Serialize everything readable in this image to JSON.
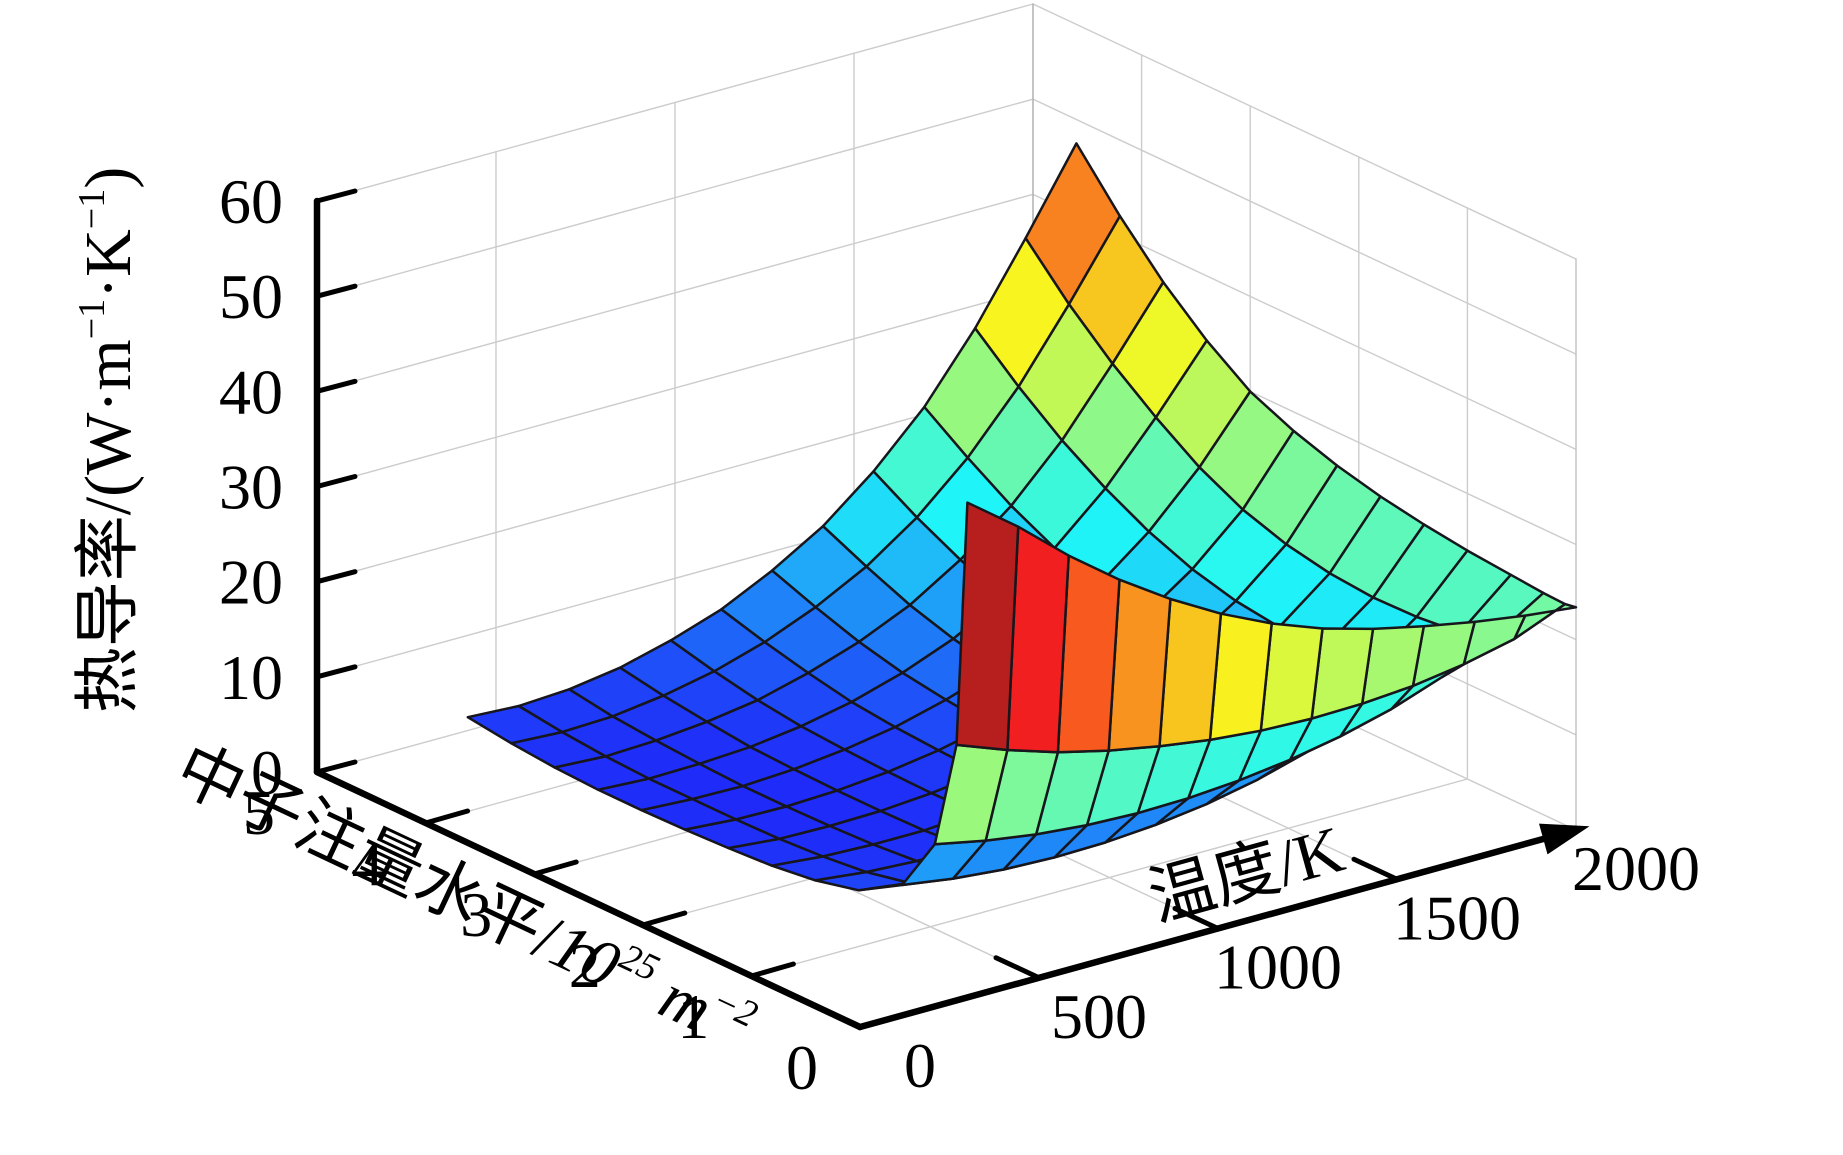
{
  "chart_data": {
    "type": "surface",
    "title": "",
    "xlabel": "温度/K",
    "ylabel": "中子注量水平/10²⁵ m⁻²",
    "zlabel": "热导率/(W·m⁻¹·K⁻¹)",
    "xlabel_parts": [
      {
        "t": "温度/K"
      }
    ],
    "ylabel_parts": [
      {
        "t": "中子注量水平/"
      },
      {
        "t": "10",
        "it": true
      },
      {
        "t": "25",
        "sup": true,
        "it": true
      },
      {
        "t": " m",
        "it": true
      },
      {
        "t": "−2",
        "sup": true,
        "it": true
      }
    ],
    "zlabel_parts": [
      {
        "t": "热导率/(W·m"
      },
      {
        "t": "−1",
        "sup": true
      },
      {
        "t": "·K"
      },
      {
        "t": "−1",
        "sup": true
      },
      {
        "t": ")"
      }
    ],
    "x_ticks": [
      0,
      500,
      1000,
      1500,
      2000
    ],
    "y_ticks": [
      0,
      1,
      2,
      3,
      4,
      5
    ],
    "z_ticks": [
      0,
      10,
      20,
      30,
      40,
      50,
      60
    ],
    "xlim": [
      0,
      2000
    ],
    "ylim": [
      0,
      5
    ],
    "zlim": [
      0,
      60
    ],
    "grid": true,
    "legend": "none",
    "colormap": "jet",
    "caxis": [
      -5,
      55
    ],
    "axis_color": "#000000",
    "grid_color": "#cccccc",
    "mesh_edge_color": "#16161c",
    "temperature_K": [
      300,
      442,
      583,
      725,
      867,
      1008,
      1150,
      1292,
      1433,
      1575,
      1717,
      1858,
      2000
    ],
    "fluence_1e25_m2": [
      0,
      0.1,
      0.3,
      0.6,
      1.0,
      1.4,
      1.8,
      2.2,
      2.6,
      3.0,
      3.4,
      3.8,
      4.2,
      4.6
    ],
    "conductivity_W_mK": [
      [
        52.0,
        48.0,
        43.5,
        39.5,
        36.0,
        33.0,
        30.5,
        28.5,
        27.0,
        25.8,
        24.8,
        24.0,
        23.4
      ],
      [
        26.0,
        24.0,
        22.3,
        21.0,
        20.0,
        19.2,
        18.7,
        18.5,
        18.6,
        19.0,
        19.8,
        21.0,
        23.2
      ],
      [
        14.5,
        13.4,
        12.6,
        12.1,
        11.9,
        12.0,
        12.4,
        13.1,
        14.1,
        15.5,
        17.4,
        20.0,
        23.3
      ],
      [
        8.6,
        7.8,
        7.3,
        7.1,
        7.2,
        7.6,
        8.3,
        9.4,
        10.9,
        12.9,
        15.5,
        19.0,
        23.6
      ],
      [
        5.9,
        5.2,
        4.9,
        4.8,
        5.0,
        5.5,
        6.4,
        7.7,
        9.4,
        11.7,
        14.7,
        18.5,
        24.0
      ],
      [
        4.8,
        4.2,
        3.9,
        3.9,
        4.2,
        4.8,
        5.8,
        7.1,
        8.9,
        11.3,
        14.4,
        18.4,
        24.6
      ],
      [
        4.2,
        3.7,
        3.5,
        3.5,
        3.9,
        4.5,
        5.5,
        6.9,
        8.8,
        11.3,
        14.6,
        18.8,
        25.4
      ],
      [
        3.9,
        3.4,
        3.3,
        3.4,
        3.8,
        4.5,
        5.6,
        7.1,
        9.2,
        11.8,
        15.2,
        19.7,
        26.5
      ],
      [
        3.7,
        3.3,
        3.2,
        3.4,
        3.9,
        4.7,
        5.9,
        7.6,
        9.8,
        12.7,
        16.4,
        21.2,
        28.0
      ],
      [
        3.6,
        3.3,
        3.2,
        3.5,
        4.1,
        5.0,
        6.4,
        8.2,
        10.7,
        14.0,
        18.2,
        23.5,
        30.0
      ],
      [
        3.6,
        3.3,
        3.4,
        3.7,
        4.4,
        5.5,
        7.1,
        9.2,
        12.1,
        15.8,
        20.6,
        26.6,
        33.2
      ],
      [
        3.8,
        3.5,
        3.7,
        4.2,
        5.0,
        6.4,
        8.2,
        10.6,
        13.9,
        18.1,
        23.5,
        30.1,
        37.2
      ],
      [
        4.2,
        3.9,
        4.1,
        4.8,
        5.9,
        7.5,
        9.7,
        12.5,
        16.2,
        21.0,
        27.0,
        34.2,
        42.0
      ],
      [
        4.8,
        4.5,
        4.8,
        5.6,
        7.0,
        8.8,
        11.4,
        14.6,
        18.9,
        24.2,
        31.0,
        39.0,
        47.5
      ]
    ]
  }
}
